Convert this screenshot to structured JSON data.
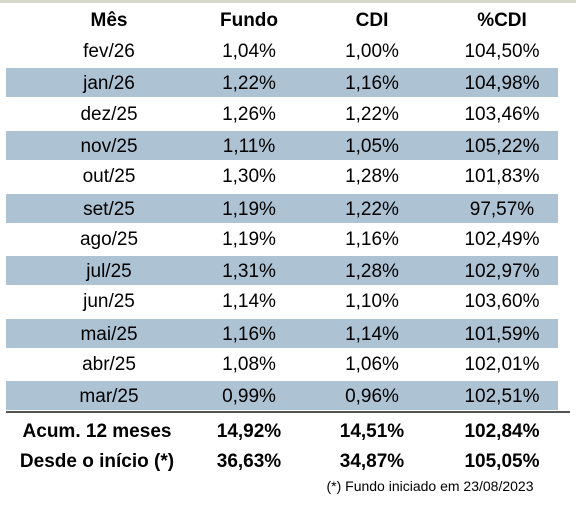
{
  "header": {
    "col_month": "Mês",
    "col_fund": "Fundo",
    "col_cdi": "CDI",
    "col_pct_cdi": "%CDI"
  },
  "rows": [
    {
      "month": "fev/26",
      "fund": "1,04%",
      "cdi": "1,00%",
      "pct_cdi": "104,50%"
    },
    {
      "month": "jan/26",
      "fund": "1,22%",
      "cdi": "1,16%",
      "pct_cdi": "104,98%"
    },
    {
      "month": "dez/25",
      "fund": "1,26%",
      "cdi": "1,22%",
      "pct_cdi": "103,46%"
    },
    {
      "month": "nov/25",
      "fund": "1,11%",
      "cdi": "1,05%",
      "pct_cdi": "105,22%"
    },
    {
      "month": "out/25",
      "fund": "1,30%",
      "cdi": "1,28%",
      "pct_cdi": "101,83%"
    },
    {
      "month": "set/25",
      "fund": "1,19%",
      "cdi": "1,22%",
      "pct_cdi": "97,57%"
    },
    {
      "month": "ago/25",
      "fund": "1,19%",
      "cdi": "1,16%",
      "pct_cdi": "102,49%"
    },
    {
      "month": "jul/25",
      "fund": "1,31%",
      "cdi": "1,28%",
      "pct_cdi": "102,97%"
    },
    {
      "month": "jun/25",
      "fund": "1,14%",
      "cdi": "1,10%",
      "pct_cdi": "103,60%"
    },
    {
      "month": "mai/25",
      "fund": "1,16%",
      "cdi": "1,14%",
      "pct_cdi": "101,59%"
    },
    {
      "month": "abr/25",
      "fund": "1,08%",
      "cdi": "1,06%",
      "pct_cdi": "102,01%"
    },
    {
      "month": "mar/25",
      "fund": "0,99%",
      "cdi": "0,96%",
      "pct_cdi": "102,51%"
    }
  ],
  "summary": [
    {
      "label": "Acum. 12 meses",
      "fund": "14,92%",
      "cdi": "14,51%",
      "pct_cdi": "102,84%"
    },
    {
      "label": "Desde o início (*)",
      "fund": "36,63%",
      "cdi": "34,87%",
      "pct_cdi": "105,05%"
    }
  ],
  "footnote": "(*) Fundo iniciado em 23/08/2023",
  "colors": {
    "shaded_row": "#adc2d3",
    "divider": "#555555",
    "top_rule": "#d6d9c8"
  }
}
